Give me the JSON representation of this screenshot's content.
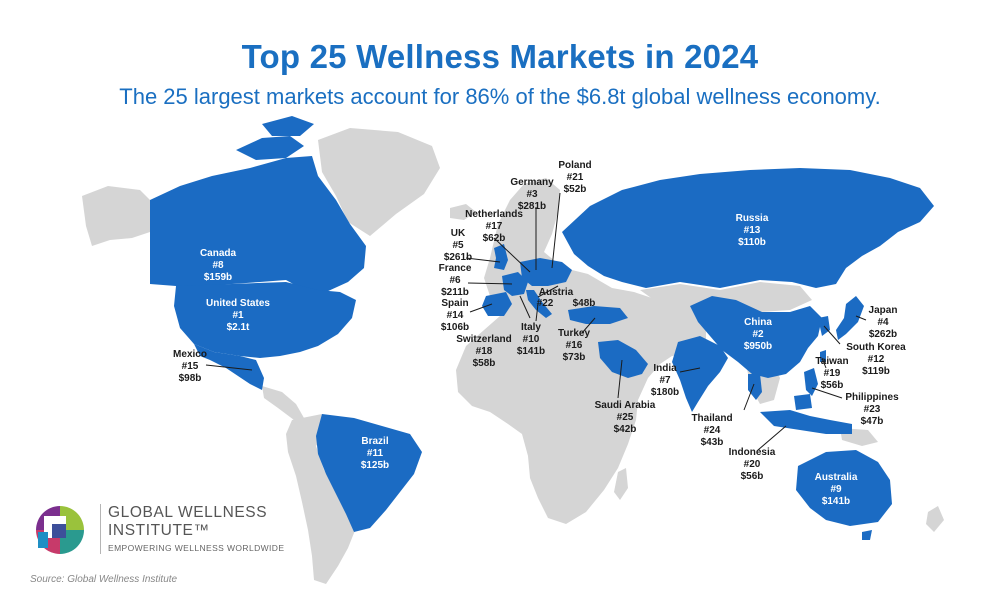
{
  "header": {
    "title": "Top 25 Wellness Markets in 2024",
    "subtitle": "The 25 largest markets account for 86% of the $6.8t global wellness economy."
  },
  "colors": {
    "highlight": "#1b6bc3",
    "land": "#d5d5d5",
    "title": "#1a6fc1"
  },
  "markets": [
    {
      "id": "us",
      "name": "United States",
      "rank": "#1",
      "value": "$2.1t"
    },
    {
      "id": "china",
      "name": "China",
      "rank": "#2",
      "value": "$950b"
    },
    {
      "id": "germany",
      "name": "Germany",
      "rank": "#3",
      "value": "$281b"
    },
    {
      "id": "japan",
      "name": "Japan",
      "rank": "#4",
      "value": "$262b"
    },
    {
      "id": "uk",
      "name": "UK",
      "rank": "#5",
      "value": "$261b"
    },
    {
      "id": "france",
      "name": "France",
      "rank": "#6",
      "value": "$211b"
    },
    {
      "id": "india",
      "name": "India",
      "rank": "#7",
      "value": "$180b"
    },
    {
      "id": "canada",
      "name": "Canada",
      "rank": "#8",
      "value": "$159b"
    },
    {
      "id": "australia",
      "name": "Australia",
      "rank": "#9",
      "value": "$141b"
    },
    {
      "id": "italy",
      "name": "Italy",
      "rank": "#10",
      "value": "$141b"
    },
    {
      "id": "brazil",
      "name": "Brazil",
      "rank": "#11",
      "value": "$125b"
    },
    {
      "id": "southkorea",
      "name": "South Korea",
      "rank": "#12",
      "value": "$119b"
    },
    {
      "id": "russia",
      "name": "Russia",
      "rank": "#13",
      "value": "$110b"
    },
    {
      "id": "spain",
      "name": "Spain",
      "rank": "#14",
      "value": "$106b"
    },
    {
      "id": "mexico",
      "name": "Mexico",
      "rank": "#15",
      "value": "$98b"
    },
    {
      "id": "turkey",
      "name": "Turkey",
      "rank": "#16",
      "value": "$73b"
    },
    {
      "id": "netherlands",
      "name": "Netherlands",
      "rank": "#17",
      "value": "$62b"
    },
    {
      "id": "switzerland",
      "name": "Switzerland",
      "rank": "#18",
      "value": "$58b"
    },
    {
      "id": "taiwan",
      "name": "Taiwan",
      "rank": "#19",
      "value": "$56b"
    },
    {
      "id": "indonesia",
      "name": "Indonesia",
      "rank": "#20",
      "value": "$56b"
    },
    {
      "id": "poland",
      "name": "Poland",
      "rank": "#21",
      "value": "$52b"
    },
    {
      "id": "austria",
      "name": "Austria",
      "rank": "#22",
      "value": "$48b"
    },
    {
      "id": "philippines",
      "name": "Philippines",
      "rank": "#23",
      "value": "$47b"
    },
    {
      "id": "thailand",
      "name": "Thailand",
      "rank": "#24",
      "value": "$43b"
    },
    {
      "id": "saudi",
      "name": "Saudi Arabia",
      "rank": "#25",
      "value": "$42b"
    }
  ],
  "logo": {
    "name_line1": "GLOBAL WELLNESS",
    "name_line2": "INSTITUTE™",
    "tagline": "EMPOWERING WELLNESS WORLDWIDE"
  },
  "source": "Source: Global Wellness Institute"
}
